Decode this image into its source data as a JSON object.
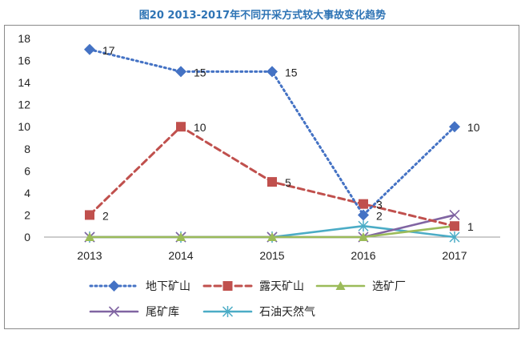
{
  "title": "图20  2013-2017年不同开采方式较大事故变化趋势",
  "chart_data": {
    "type": "line",
    "categories": [
      "2013",
      "2014",
      "2015",
      "2016",
      "2017"
    ],
    "ylim": [
      0,
      18
    ],
    "yticks": [
      0,
      2,
      4,
      6,
      8,
      10,
      12,
      14,
      16,
      18
    ],
    "grid": false,
    "legend_position": "bottom",
    "series": [
      {
        "name": "地下矿山",
        "values": [
          17,
          15,
          15,
          2,
          10
        ],
        "color": "#4472c4",
        "dash": "dotted",
        "marker": "diamond",
        "labels": true
      },
      {
        "name": "露天矿山",
        "values": [
          2,
          10,
          5,
          3,
          1
        ],
        "color": "#c0504d",
        "dash": "dashed",
        "marker": "square",
        "labels": true
      },
      {
        "name": "选矿厂",
        "values": [
          0,
          0,
          0,
          0,
          1
        ],
        "color": "#9bbb59",
        "dash": "solid",
        "marker": "triangle",
        "labels": false
      },
      {
        "name": "尾矿库",
        "values": [
          0,
          0,
          0,
          0,
          2
        ],
        "color": "#8064a2",
        "dash": "solid",
        "marker": "x",
        "labels": false
      },
      {
        "name": "石油天然气",
        "values": [
          0,
          0,
          0,
          1,
          0
        ],
        "color": "#4bacc6",
        "dash": "solid",
        "marker": "star",
        "labels": false
      }
    ]
  }
}
